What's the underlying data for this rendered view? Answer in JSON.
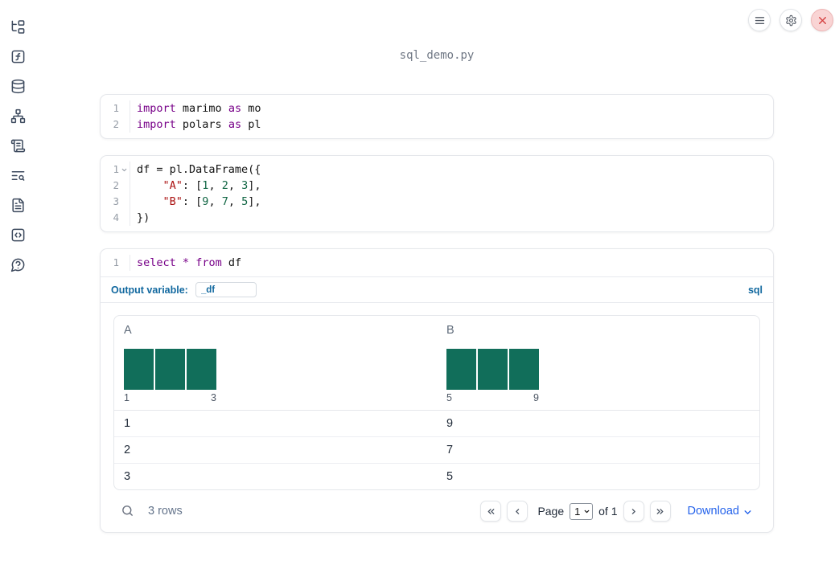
{
  "app": {
    "title": "sql_demo.py"
  },
  "toolbar": {
    "buttons": [
      {
        "icon": "menu"
      },
      {
        "icon": "settings"
      },
      {
        "icon": "close"
      }
    ]
  },
  "sidebar": {
    "items": [
      {
        "icon": "file-tree"
      },
      {
        "icon": "function-square"
      },
      {
        "icon": "database"
      },
      {
        "icon": "dependency-graph"
      },
      {
        "icon": "scroll-text"
      },
      {
        "icon": "text-search"
      },
      {
        "icon": "file-text"
      },
      {
        "icon": "code-square"
      },
      {
        "icon": "help-circle"
      }
    ]
  },
  "cells": [
    {
      "id": "imports",
      "lines": [
        {
          "num": "1",
          "fold": false,
          "tokens": [
            [
              "import",
              "kw"
            ],
            [
              " marimo ",
              "pl"
            ],
            [
              "as",
              "kw"
            ],
            [
              " mo",
              "pl"
            ]
          ]
        },
        {
          "num": "2",
          "fold": false,
          "tokens": [
            [
              "import",
              "kw"
            ],
            [
              " polars ",
              "pl"
            ],
            [
              "as",
              "kw"
            ],
            [
              " pl",
              "pl"
            ]
          ]
        }
      ]
    },
    {
      "id": "dataframe",
      "lines": [
        {
          "num": "1",
          "fold": true,
          "tokens": [
            [
              "df = pl.DataFrame({",
              "pl"
            ]
          ]
        },
        {
          "num": "2",
          "fold": false,
          "tokens": [
            [
              "    ",
              "pl"
            ],
            [
              "\"A\"",
              "str"
            ],
            [
              ": [",
              "pl"
            ],
            [
              "1",
              "num"
            ],
            [
              ", ",
              "pl"
            ],
            [
              "2",
              "num"
            ],
            [
              ", ",
              "pl"
            ],
            [
              "3",
              "num"
            ],
            [
              "],",
              "pl"
            ]
          ]
        },
        {
          "num": "3",
          "fold": false,
          "tokens": [
            [
              "    ",
              "pl"
            ],
            [
              "\"B\"",
              "str"
            ],
            [
              ": [",
              "pl"
            ],
            [
              "9",
              "num"
            ],
            [
              ", ",
              "pl"
            ],
            [
              "7",
              "num"
            ],
            [
              ", ",
              "pl"
            ],
            [
              "5",
              "num"
            ],
            [
              "],",
              "pl"
            ]
          ]
        },
        {
          "num": "4",
          "fold": false,
          "tokens": [
            [
              "})",
              "pl"
            ]
          ]
        }
      ]
    },
    {
      "id": "sql",
      "lines": [
        {
          "num": "1",
          "fold": false,
          "tokens": [
            [
              "select",
              "kw"
            ],
            [
              " ",
              "pl"
            ],
            [
              "*",
              "kw"
            ],
            [
              " ",
              "pl"
            ],
            [
              "from",
              "kw"
            ],
            [
              " df",
              "pl"
            ]
          ]
        }
      ]
    }
  ],
  "sql_meta": {
    "label": "Output variable:",
    "value": "_df",
    "language": "sql"
  },
  "table": {
    "columns": [
      {
        "name": "A",
        "hist_bars": [
          1,
          1,
          1
        ],
        "hist_min": "1",
        "hist_max": "3"
      },
      {
        "name": "B",
        "hist_bars": [
          1,
          1,
          1
        ],
        "hist_min": "5",
        "hist_max": "9"
      }
    ],
    "rows": [
      [
        "1",
        "9"
      ],
      [
        "2",
        "7"
      ],
      [
        "3",
        "5"
      ]
    ],
    "footer": {
      "row_count": "3 rows",
      "page_label": "Page",
      "page_value": "1",
      "page_total": "of 1",
      "download": "Download"
    }
  },
  "colors": {
    "keyword": "#770088",
    "string": "#aa1111",
    "number": "#116644",
    "histogram_bar": "#116e5a",
    "sql_accent": "#11689f",
    "link": "#2563eb",
    "close_button_bg": "#f9d4d4",
    "close_button_fg": "#d64545"
  }
}
